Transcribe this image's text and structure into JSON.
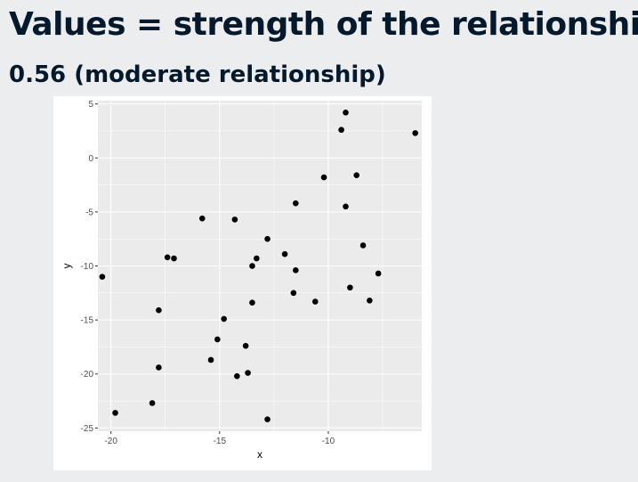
{
  "slide": {
    "title": "Values = strength of the relationship",
    "subtitle": "0.56 (moderate relationship)"
  },
  "chart_data": {
    "type": "scatter",
    "xlabel": "x",
    "ylabel": "y",
    "xlim": [
      -20.6,
      -5.7
    ],
    "ylim": [
      -25.3,
      5.3
    ],
    "x_ticks": [
      -20,
      -15,
      -10
    ],
    "y_ticks": [
      5,
      0,
      -5,
      -10,
      -15,
      -20,
      -25
    ],
    "grid": true,
    "panel_color": "#ebebeb",
    "grid_color": "#ffffff",
    "point_color": "#000000",
    "points": [
      {
        "x": -20.4,
        "y": -11.0
      },
      {
        "x": -19.8,
        "y": -23.6
      },
      {
        "x": -18.1,
        "y": -22.7
      },
      {
        "x": -17.8,
        "y": -19.4
      },
      {
        "x": -17.8,
        "y": -14.1
      },
      {
        "x": -17.4,
        "y": -9.2
      },
      {
        "x": -17.1,
        "y": -9.3
      },
      {
        "x": -15.8,
        "y": -5.6
      },
      {
        "x": -15.4,
        "y": -18.7
      },
      {
        "x": -15.1,
        "y": -16.8
      },
      {
        "x": -14.8,
        "y": -14.9
      },
      {
        "x": -14.3,
        "y": -5.7
      },
      {
        "x": -14.2,
        "y": -20.2
      },
      {
        "x": -13.8,
        "y": -17.4
      },
      {
        "x": -13.7,
        "y": -19.9
      },
      {
        "x": -13.5,
        "y": -13.4
      },
      {
        "x": -13.5,
        "y": -10.0
      },
      {
        "x": -13.3,
        "y": -9.3
      },
      {
        "x": -12.8,
        "y": -7.5
      },
      {
        "x": -12.8,
        "y": -24.2
      },
      {
        "x": -12.0,
        "y": -8.9
      },
      {
        "x": -11.6,
        "y": -12.5
      },
      {
        "x": -11.5,
        "y": -10.4
      },
      {
        "x": -11.5,
        "y": -4.2
      },
      {
        "x": -10.6,
        "y": -13.3
      },
      {
        "x": -10.2,
        "y": -1.8
      },
      {
        "x": -9.4,
        "y": 2.6
      },
      {
        "x": -9.2,
        "y": 4.2
      },
      {
        "x": -9.2,
        "y": -4.5
      },
      {
        "x": -9.0,
        "y": -12.0
      },
      {
        "x": -8.7,
        "y": -1.6
      },
      {
        "x": -8.4,
        "y": -8.1
      },
      {
        "x": -8.1,
        "y": -13.2
      },
      {
        "x": -7.7,
        "y": -10.7
      },
      {
        "x": -6.0,
        "y": 2.3
      }
    ]
  }
}
